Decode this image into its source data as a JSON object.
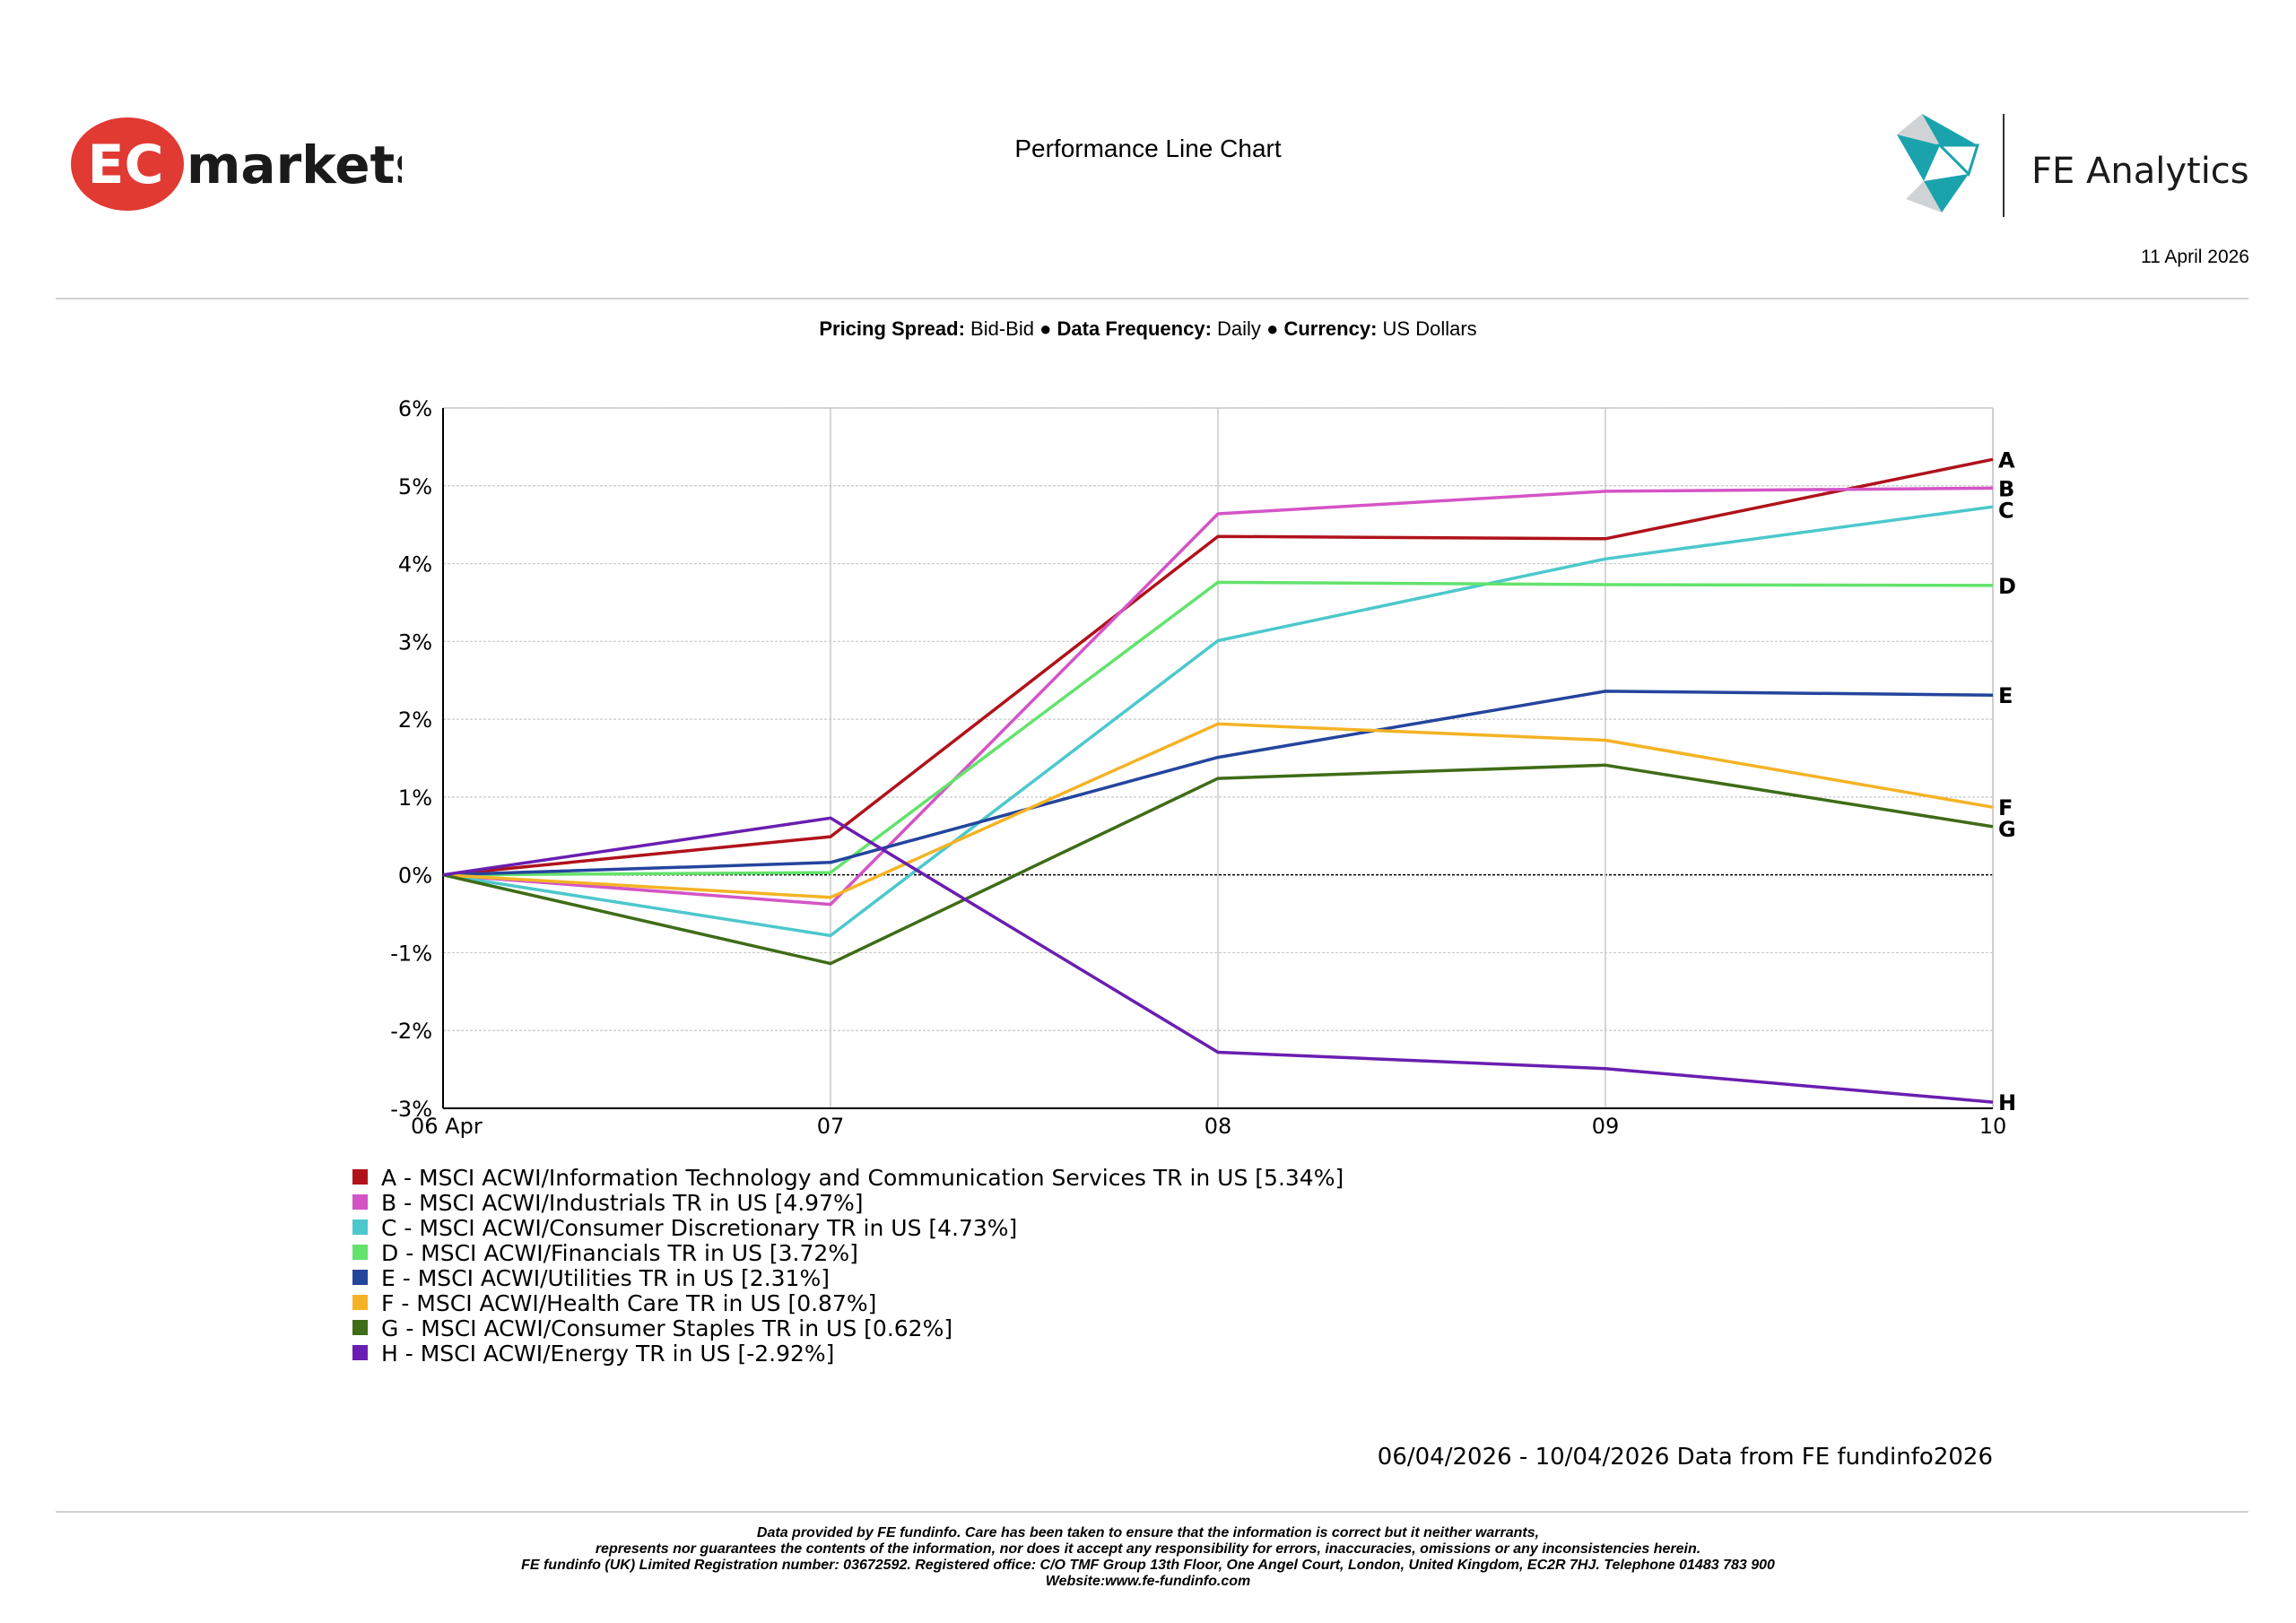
{
  "header": {
    "brand_left": "markets",
    "brand_left_mark": "EC",
    "brand_right": "FE Analytics",
    "title": "Performance Line Chart",
    "date": "11 April 2026"
  },
  "meta": {
    "pricing_spread_label": "Pricing Spread:",
    "pricing_spread_value": "Bid-Bid",
    "sep": "●",
    "data_frequency_label": "Data Frequency:",
    "data_frequency_value": "Daily",
    "currency_label": "Currency:",
    "currency_value": "US Dollars"
  },
  "chart_data": {
    "type": "line",
    "x": [
      "06 Apr",
      "07",
      "08",
      "09",
      "10"
    ],
    "ylim": [
      -3,
      6
    ],
    "yticks": [
      -3,
      -2,
      -1,
      0,
      1,
      2,
      3,
      4,
      5,
      6
    ],
    "ytick_labels": [
      "-3%",
      "-2%",
      "-1%",
      "0%",
      "1%",
      "2%",
      "3%",
      "4%",
      "5%",
      "6%"
    ],
    "grid": true,
    "legend_position": "bottom-left",
    "series": [
      {
        "letter": "A",
        "name": "A - MSCI ACWI/Information Technology and Communication Services TR in US [5.34%]",
        "color": "#b0121b",
        "values": [
          0,
          0.49,
          4.35,
          4.32,
          5.34
        ]
      },
      {
        "letter": "B",
        "name": "B - MSCI ACWI/Industrials TR in US [4.97%]",
        "color": "#d454c6",
        "values": [
          0,
          -0.38,
          4.64,
          4.93,
          4.97
        ]
      },
      {
        "letter": "C",
        "name": "C - MSCI ACWI/Consumer Discretionary TR in US [4.73%]",
        "color": "#4cc8cc",
        "values": [
          0,
          -0.78,
          3.01,
          4.06,
          4.73
        ]
      },
      {
        "letter": "D",
        "name": "D - MSCI ACWI/Financials TR in US [3.72%]",
        "color": "#63e26c",
        "values": [
          0,
          0.03,
          3.76,
          3.73,
          3.72
        ]
      },
      {
        "letter": "E",
        "name": "E - MSCI ACWI/Utilities TR in US [2.31%]",
        "color": "#24459d",
        "values": [
          0,
          0.16,
          1.51,
          2.36,
          2.31
        ]
      },
      {
        "letter": "F",
        "name": "F - MSCI ACWI/Health Care TR in US [0.87%]",
        "color": "#f4b325",
        "values": [
          0,
          -0.29,
          1.94,
          1.73,
          0.87
        ]
      },
      {
        "letter": "G",
        "name": "G - MSCI ACWI/Consumer Staples TR in US [0.62%]",
        "color": "#3e6c17",
        "values": [
          0,
          -1.14,
          1.24,
          1.41,
          0.62
        ]
      },
      {
        "letter": "H",
        "name": "H - MSCI ACWI/Energy TR in US [-2.92%]",
        "color": "#6a1eb1",
        "values": [
          0,
          0.73,
          -2.28,
          -2.49,
          -2.92
        ]
      }
    ]
  },
  "footer": {
    "data_source": "06/04/2026 - 10/04/2026 Data from FE fundinfo2026",
    "disclaimer": [
      "Data provided by FE fundinfo. Care has been taken to ensure that the information is correct but it neither warrants,",
      "represents nor guarantees the contents of the information, nor does it accept any responsibility for errors, inaccuracies, omissions or any inconsistencies herein.",
      "FE fundinfo (UK) Limited Registration number: 03672592. Registered office: C/O TMF Group 13th Floor, One Angel Court, London, United Kingdom, EC2R 7HJ. Telephone 01483 783 900",
      "Website:www.fe-fundinfo.com"
    ]
  }
}
